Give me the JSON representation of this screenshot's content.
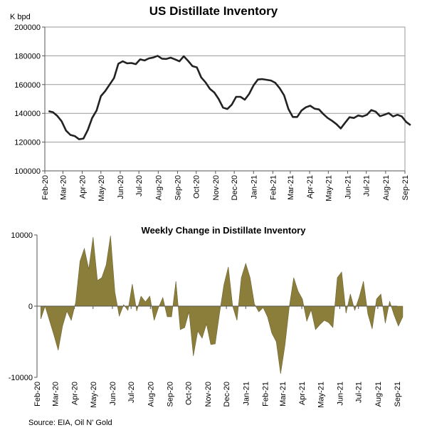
{
  "chart_data": [
    {
      "type": "line",
      "title": "US Distillate Inventory",
      "ylabel": "K bpd",
      "ylim": [
        100000,
        200000
      ],
      "yticks": [
        100000,
        120000,
        140000,
        160000,
        180000,
        200000
      ],
      "ytick_labels": [
        "100000",
        "120000",
        "140000",
        "160000",
        "180000",
        "200000"
      ],
      "xtick_labels": [
        "Feb-20",
        "Mar-20",
        "Apr-20",
        "May-20",
        "Jun-20",
        "Jul-20",
        "Aug-20",
        "Sep-20",
        "Oct-20",
        "Nov-20",
        "Dec-20",
        "Jan-21",
        "Feb-21",
        "Mar-21",
        "Apr-21",
        "May-21",
        "Jun-21",
        "Jul-21",
        "Aug-21",
        "Sep-21"
      ],
      "grid": true,
      "color": "#222222",
      "series": [
        {
          "x": [
            "2020-02-07",
            "2020-02-14",
            "2020-02-21",
            "2020-02-28",
            "2020-03-06",
            "2020-03-13",
            "2020-03-20",
            "2020-03-27",
            "2020-04-03",
            "2020-04-10",
            "2020-04-17",
            "2020-04-24",
            "2020-05-01",
            "2020-05-08",
            "2020-05-15",
            "2020-05-22",
            "2020-05-29",
            "2020-06-05",
            "2020-06-12",
            "2020-06-19",
            "2020-06-26",
            "2020-07-03",
            "2020-07-10",
            "2020-07-17",
            "2020-07-24",
            "2020-07-31",
            "2020-08-07",
            "2020-08-14",
            "2020-08-21",
            "2020-08-28",
            "2020-09-04",
            "2020-09-11",
            "2020-09-18",
            "2020-09-25",
            "2020-10-02",
            "2020-10-09",
            "2020-10-16",
            "2020-10-23",
            "2020-10-30",
            "2020-11-06",
            "2020-11-13",
            "2020-11-20",
            "2020-11-27",
            "2020-12-04",
            "2020-12-11",
            "2020-12-18",
            "2020-12-25",
            "2021-01-01",
            "2021-01-08",
            "2021-01-15",
            "2021-01-22",
            "2021-01-29",
            "2021-02-05",
            "2021-02-12",
            "2021-02-19",
            "2021-02-26",
            "2021-03-05",
            "2021-03-12",
            "2021-03-19",
            "2021-03-26",
            "2021-04-02",
            "2021-04-09",
            "2021-04-16",
            "2021-04-23",
            "2021-04-30",
            "2021-05-07",
            "2021-05-14",
            "2021-05-21",
            "2021-05-28",
            "2021-06-04",
            "2021-06-11",
            "2021-06-18",
            "2021-06-25",
            "2021-07-02",
            "2021-07-09",
            "2021-07-16",
            "2021-07-23",
            "2021-07-30",
            "2021-08-06",
            "2021-08-13",
            "2021-08-20",
            "2021-08-27",
            "2021-09-03",
            "2021-09-10"
          ],
          "values": [
            141500,
            140800,
            138200,
            134500,
            128000,
            125000,
            124200,
            122000,
            122500,
            128500,
            136800,
            142000,
            152000,
            155500,
            160000,
            164500,
            174500,
            176200,
            174800,
            175000,
            174200,
            177500,
            176800,
            178200,
            178800,
            180000,
            178000,
            177800,
            178700,
            177500,
            176200,
            179700,
            176500,
            172800,
            172000,
            165000,
            161500,
            157000,
            154500,
            150000,
            144000,
            143000,
            146000,
            151500,
            151500,
            149500,
            153500,
            159500,
            163500,
            163800,
            163300,
            162800,
            161200,
            157500,
            152500,
            143000,
            137500,
            137500,
            142000,
            144200,
            145300,
            143200,
            142700,
            139500,
            136800,
            134800,
            132500,
            129500,
            133500,
            137300,
            136800,
            138500,
            137800,
            139000,
            142300,
            141200,
            138000,
            139000,
            140200,
            137800,
            139000,
            137800,
            134000,
            131800
          ]
        }
      ]
    },
    {
      "type": "area",
      "title": "Weekly Change in Distillate Inventory",
      "ylim": [
        -10000,
        10000
      ],
      "yticks": [
        -10000,
        0,
        10000
      ],
      "ytick_labels": [
        "-10000",
        "0",
        "10000"
      ],
      "xtick_labels": [
        "Feb-20",
        "Mar-20",
        "Apr-20",
        "May-20",
        "Jun-20",
        "Jul-20",
        "Aug-20",
        "Sep-20",
        "Oct-20",
        "Nov-20",
        "Dec-20",
        "Jan-21",
        "Feb-21",
        "Mar-21",
        "Apr-21",
        "May-21",
        "Jun-21",
        "Jul-21",
        "Aug-21",
        "Sep-21"
      ],
      "grid": false,
      "color": "#8b7d3a",
      "series": [
        {
          "x": [
            "2020-02-07",
            "2020-02-14",
            "2020-02-21",
            "2020-02-28",
            "2020-03-06",
            "2020-03-13",
            "2020-03-20",
            "2020-03-27",
            "2020-04-03",
            "2020-04-10",
            "2020-04-17",
            "2020-04-24",
            "2020-05-01",
            "2020-05-08",
            "2020-05-15",
            "2020-05-22",
            "2020-05-29",
            "2020-06-05",
            "2020-06-12",
            "2020-06-19",
            "2020-06-26",
            "2020-07-03",
            "2020-07-10",
            "2020-07-17",
            "2020-07-24",
            "2020-07-31",
            "2020-08-07",
            "2020-08-14",
            "2020-08-21",
            "2020-08-28",
            "2020-09-04",
            "2020-09-11",
            "2020-09-18",
            "2020-09-25",
            "2020-10-02",
            "2020-10-09",
            "2020-10-16",
            "2020-10-23",
            "2020-10-30",
            "2020-11-06",
            "2020-11-13",
            "2020-11-20",
            "2020-11-27",
            "2020-12-04",
            "2020-12-11",
            "2020-12-18",
            "2020-12-25",
            "2021-01-01",
            "2021-01-08",
            "2021-01-15",
            "2021-01-22",
            "2021-01-29",
            "2021-02-05",
            "2021-02-12",
            "2021-02-19",
            "2021-02-26",
            "2021-03-05",
            "2021-03-12",
            "2021-03-19",
            "2021-03-26",
            "2021-04-02",
            "2021-04-09",
            "2021-04-16",
            "2021-04-23",
            "2021-04-30",
            "2021-05-07",
            "2021-05-14",
            "2021-05-21",
            "2021-05-28",
            "2021-06-04",
            "2021-06-11",
            "2021-06-18",
            "2021-06-25",
            "2021-07-02",
            "2021-07-09",
            "2021-07-16",
            "2021-07-23",
            "2021-07-30",
            "2021-08-06",
            "2021-08-13",
            "2021-08-20",
            "2021-08-27",
            "2021-09-03",
            "2021-09-10"
          ],
          "values": [
            -1800,
            0,
            -2000,
            -4000,
            -6200,
            -2800,
            -700,
            -2000,
            500,
            6300,
            8100,
            5200,
            9700,
            3600,
            4000,
            5800,
            9900,
            2000,
            -1400,
            200,
            -600,
            3100,
            -700,
            1400,
            600,
            1400,
            -2000,
            -200,
            1200,
            -1500,
            -1500,
            3500,
            -3300,
            -3000,
            -800,
            -7000,
            -3500,
            -4500,
            -2500,
            -5400,
            -5300,
            -1000,
            3000,
            5500,
            0,
            -2000,
            4000,
            6000,
            4000,
            300,
            -800,
            -200,
            -1500,
            -3800,
            -5000,
            -9500,
            -5500,
            0,
            4000,
            2100,
            1000,
            -2100,
            -500,
            -3300,
            -2600,
            -2000,
            -2300,
            -3000,
            4000,
            4800,
            -1000,
            1700,
            -600,
            1200,
            3500,
            -1100,
            -3200,
            1000,
            1700,
            -2400,
            700,
            -1200,
            -2800,
            -1500
          ]
        }
      ]
    }
  ],
  "source": "Source: EIA, Oil N' Gold"
}
